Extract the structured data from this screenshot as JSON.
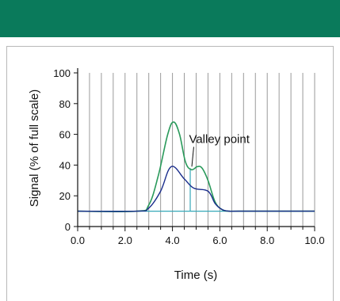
{
  "header": {
    "color": "#0a7a5b"
  },
  "chart_data": {
    "type": "line",
    "title": "",
    "xlabel": "Time (s)",
    "ylabel": "Signal (% of full scale)",
    "xlim": [
      0,
      10
    ],
    "ylim": [
      0,
      100
    ],
    "x_ticks": [
      0,
      2,
      4,
      6,
      8,
      10
    ],
    "x_tick_labels": [
      "0.0",
      "2.0",
      "4.0",
      "6.0",
      "8.0",
      "10.0"
    ],
    "y_ticks": [
      0,
      20,
      40,
      60,
      80,
      100
    ],
    "y_tick_labels": [
      "0",
      "20",
      "40",
      "60",
      "80",
      "100"
    ],
    "grid": {
      "vertical": true,
      "x_positions": [
        0.5,
        1.0,
        1.5,
        2.0,
        2.5,
        3.0,
        3.5,
        4.0,
        4.5,
        5.0,
        5.5,
        6.0,
        6.5,
        7.0,
        7.5,
        8.0,
        8.5,
        9.0,
        9.5,
        10.0
      ]
    },
    "series": [
      {
        "color": "#2a9a5b",
        "x": [
          0.0,
          2.5,
          3.0,
          3.4,
          3.8,
          4.05,
          4.3,
          4.55,
          4.8,
          5.05,
          5.25,
          5.5,
          5.8,
          6.1,
          6.4,
          6.8,
          10.0
        ],
        "values": [
          10,
          10,
          14,
          33,
          60,
          68,
          60,
          42,
          37,
          39,
          38,
          30,
          16,
          11,
          10,
          10,
          10
        ]
      },
      {
        "color": "#1a2d8c",
        "x": [
          0.0,
          2.5,
          3.0,
          3.5,
          3.95,
          4.5,
          4.9,
          5.5,
          5.8,
          6.1,
          6.4,
          6.8,
          10.0
        ],
        "values": [
          10,
          10,
          12,
          23,
          39,
          31,
          25,
          23,
          15,
          11,
          10,
          10,
          10
        ]
      }
    ],
    "drops": [
      {
        "x": 4.75,
        "y_top": 38,
        "y_bottom": 10,
        "color": "#36a8b8"
      }
    ],
    "baseline": {
      "y": 10,
      "color": "#36a8b8"
    },
    "annotations": [
      {
        "text": "Valley point",
        "x": 5.5,
        "y": 57,
        "arrow_to_x": 4.75,
        "arrow_to_y": 38
      }
    ]
  }
}
